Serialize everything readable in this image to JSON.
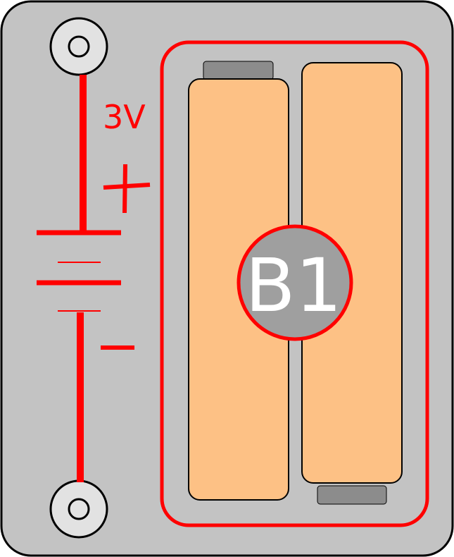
{
  "component": {
    "id_label": "B1",
    "voltage_label": "3V",
    "positive_symbol": "+",
    "negative_symbol": "–"
  },
  "colors": {
    "board": "#c3c3c3",
    "board_stroke": "#000000",
    "accent": "#ff0000",
    "battery_body": "#fdc185",
    "battery_contact": "#8c8c8c",
    "badge_fill": "#9f9f9f",
    "badge_text": "#ffffff",
    "terminal_fill": "#e2e2e2"
  },
  "icons": {
    "top_terminal": "screw-terminal-icon",
    "bottom_terminal": "screw-terminal-icon",
    "schematic": "battery-schematic-icon"
  }
}
